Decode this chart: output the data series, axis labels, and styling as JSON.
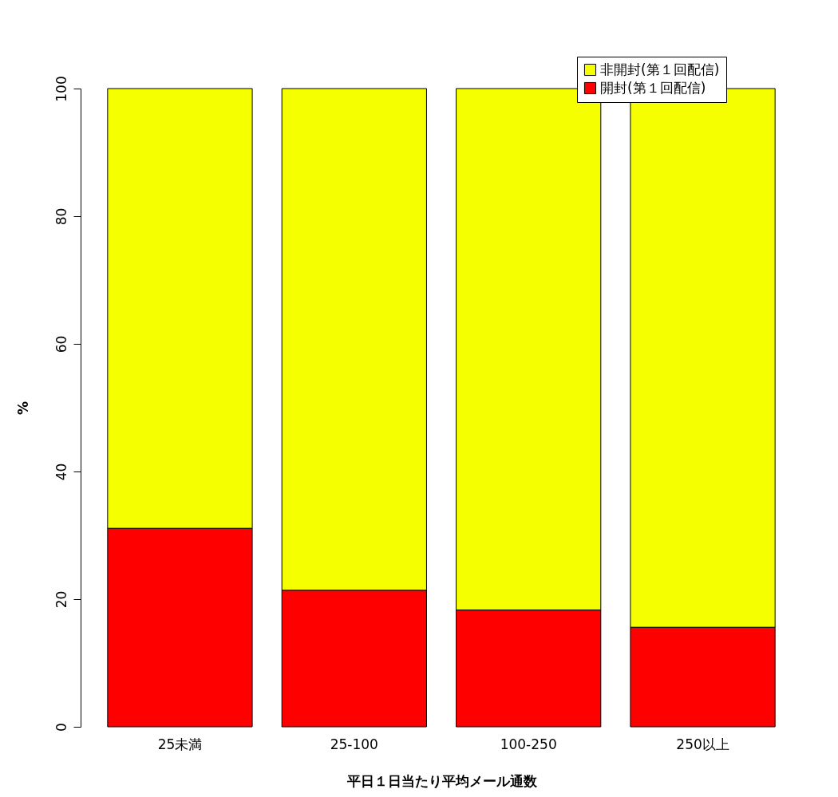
{
  "chart_data": {
    "type": "bar",
    "stacked": true,
    "xlabel": "平日１日当たり平均メール通数",
    "ylabel": "%",
    "categories": [
      "25未満",
      "25-100",
      "100-250",
      "250以上"
    ],
    "series": [
      {
        "name": "開封(第１回配信)",
        "color": "#ff0000",
        "values": [
          31.1,
          21.4,
          18.3,
          15.6
        ]
      },
      {
        "name": "非開封(第１回配信)",
        "color": "#f5ff00",
        "values": [
          68.9,
          78.6,
          81.7,
          84.4
        ]
      }
    ],
    "ylim": [
      0,
      100
    ],
    "yticks": [
      0,
      20,
      40,
      60,
      80,
      100
    ],
    "grid": false,
    "legend": "top right"
  }
}
